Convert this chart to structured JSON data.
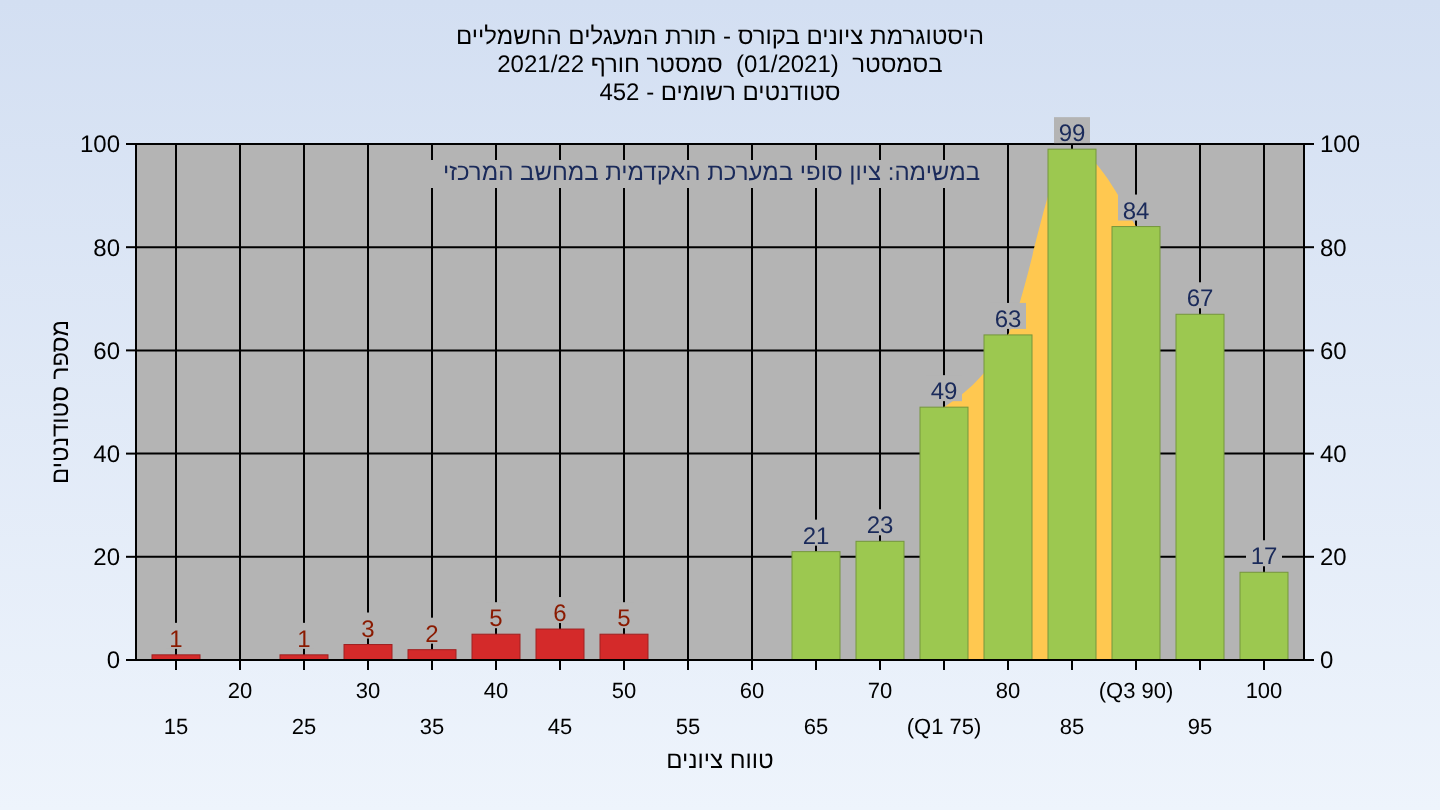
{
  "chart_data": {
    "type": "bar",
    "title": "היסטוגרמת ציונים בקורס - תורת המעגלים החשמליים",
    "subtitle": "בסמסטר  (01/2021)  סמסטר חורף 2021/22\nסטודנטים רשומים - 452",
    "xlabel": "טווח ציונים",
    "ylabel": "מספר סטודנטים",
    "annotations": [
      "במשימה: ציון סופי במערכת האקדמית במחשב המרכזי"
    ],
    "categories": [
      "15",
      "20",
      "25",
      "30",
      "35",
      "40",
      "45",
      "50",
      "55",
      "60",
      "65",
      "70",
      "(Q1 75)",
      "80",
      "85",
      "(Q3 90)",
      "95",
      "100"
    ],
    "series": [
      {
        "type": "area",
        "color": "#ffc850",
        "values": [
          null,
          null,
          null,
          null,
          null,
          null,
          null,
          null,
          null,
          null,
          null,
          null,
          49,
          63,
          99,
          84,
          null,
          null
        ]
      },
      {
        "values": [
          1,
          0,
          1,
          3,
          2,
          5,
          6,
          5,
          0,
          0,
          21,
          23,
          49,
          63,
          99,
          84,
          67,
          17
        ],
        "colors": [
          "#d42a2a",
          "#d42a2a",
          "#d42a2a",
          "#d42a2a",
          "#d42a2a",
          "#d42a2a",
          "#d42a2a",
          "#d42a2a",
          "#d42a2a",
          "#d42a2a",
          "#9cc850",
          "#9cc850",
          "#9cc850",
          "#9cc850",
          "#9cc850",
          "#9cc850",
          "#9cc850",
          "#9cc850"
        ],
        "value_labels": [
          "1",
          null,
          "1",
          "3",
          "2",
          "5",
          "6",
          "5",
          null,
          null,
          "21",
          "23",
          "49",
          "63",
          "99",
          "84",
          "67",
          "17"
        ]
      }
    ],
    "ylim": [
      0,
      100
    ],
    "yticks": [
      0,
      20,
      40,
      60,
      80,
      100
    ],
    "y2lim": [
      0,
      100
    ],
    "y2ticks": [
      0,
      20,
      40,
      60,
      80,
      100
    ],
    "grid": true
  }
}
